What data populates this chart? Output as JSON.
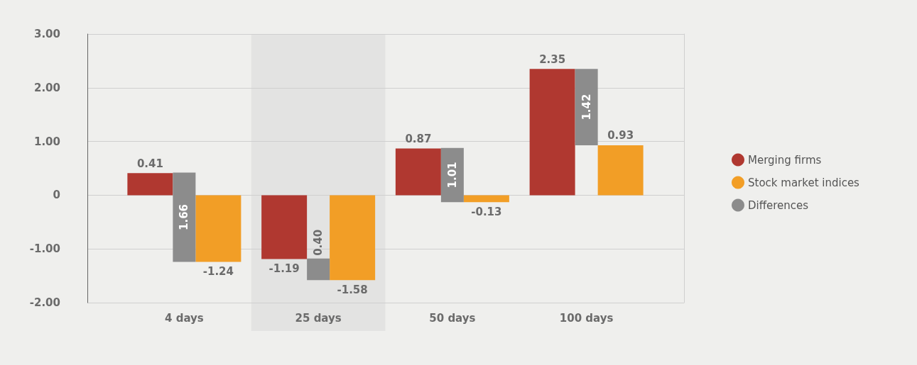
{
  "chart_data": {
    "type": "bar",
    "categories": [
      "4 days",
      "25 days",
      "50 days",
      "100 days"
    ],
    "series": [
      {
        "name": "Merging firms",
        "color": "#b03830",
        "values": [
          0.41,
          -1.19,
          0.87,
          2.35
        ],
        "value_labels": [
          "0.41",
          "-1.19",
          "0.87",
          "2.35"
        ]
      },
      {
        "name": "Stock market indices",
        "color": "#f29e26",
        "values": [
          -1.24,
          -1.58,
          -0.13,
          0.93
        ],
        "value_labels": [
          "-1.24",
          "-1.58",
          "-0.13",
          "0.93"
        ]
      },
      {
        "name": "Differences",
        "color": "#8c8c8c",
        "values": [
          1.66,
          0.4,
          1.01,
          1.42
        ],
        "base": [
          -1.24,
          -1.58,
          -0.13,
          0.93
        ],
        "value_labels": [
          "1.66",
          "0.40",
          "1.01",
          "1.42"
        ]
      }
    ],
    "ylim": [
      -2,
      3
    ],
    "yticks": [
      {
        "value": -2,
        "label": "-2.00"
      },
      {
        "value": -1,
        "label": "-1.00"
      },
      0,
      {
        "value": 1,
        "label": "1.00"
      },
      {
        "value": 2,
        "label": "2.00"
      },
      {
        "value": 3,
        "label": "3.00"
      }
    ],
    "grid": "y",
    "legend": "right",
    "bands": [
      {
        "axis": "x",
        "from": "25 days",
        "to": "25 days",
        "color": "#e3e3e2"
      }
    ]
  }
}
